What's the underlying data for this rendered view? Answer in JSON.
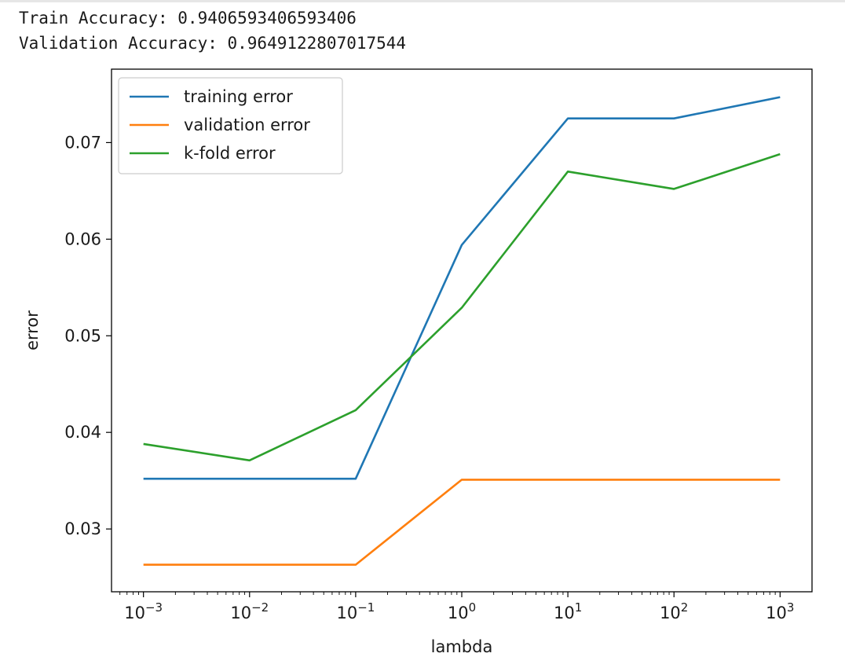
{
  "output": {
    "train_line": "Train Accuracy: 0.9406593406593406",
    "validation_line": "Validation Accuracy: 0.9649122807017544"
  },
  "chart_data": {
    "type": "line",
    "x": [
      0.001,
      0.01,
      0.1,
      1,
      10,
      100,
      1000
    ],
    "x_tick_exponents": [
      "−3",
      "−2",
      "−1",
      "0",
      "1",
      "2",
      "3"
    ],
    "x_tick_base": "10",
    "xscale": "log",
    "xlim": [
      0.0005,
      2000
    ],
    "ylim": [
      0.0235,
      0.0776
    ],
    "y_ticks": [
      0.03,
      0.04,
      0.05,
      0.06,
      0.07
    ],
    "y_tick_labels": [
      "0.03",
      "0.04",
      "0.05",
      "0.06",
      "0.07"
    ],
    "xlabel": "lambda",
    "ylabel": "error",
    "grid": false,
    "legend_position": "upper-left",
    "series": [
      {
        "name": "training error",
        "color": "#1f77b4",
        "values": [
          0.0352,
          0.0352,
          0.0352,
          0.0594,
          0.0725,
          0.0725,
          0.0747
        ]
      },
      {
        "name": "validation error",
        "color": "#ff7f0e",
        "values": [
          0.0263,
          0.0263,
          0.0263,
          0.0351,
          0.0351,
          0.0351,
          0.0351
        ]
      },
      {
        "name": "k-fold error",
        "color": "#2ca02c",
        "values": [
          0.0388,
          0.0371,
          0.0423,
          0.0529,
          0.067,
          0.0652,
          0.0688
        ]
      }
    ]
  }
}
